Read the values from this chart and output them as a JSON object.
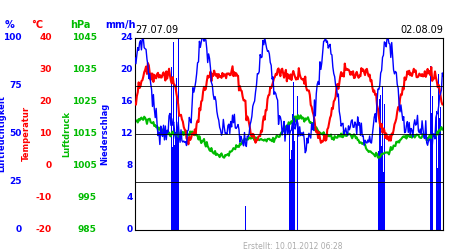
{
  "title_left": "27.07.09",
  "title_right": "02.08.09",
  "footer": "Erstellt: 10.01.2012 06:28",
  "bg_color": "#ffffff",
  "colors": {
    "humidity": "#0000ff",
    "temperature": "#ff0000",
    "pressure": "#00bb00",
    "precipitation": "#0000ff"
  },
  "axis_labels": {
    "humidity": "Luftfeuchtigkeit",
    "temperature": "Temperatur",
    "pressure": "Luftdruck",
    "precipitation": "Niederschlag"
  },
  "units": {
    "humidity": "%",
    "temperature": "°C",
    "pressure": "hPa",
    "precipitation": "mm/h"
  },
  "hum_ticks": [
    0,
    25,
    50,
    75,
    100
  ],
  "temp_ticks": [
    -20,
    -10,
    0,
    10,
    20,
    30,
    40
  ],
  "press_ticks": [
    985,
    995,
    1005,
    1015,
    1025,
    1035,
    1045
  ],
  "precip_ticks": [
    0,
    4,
    8,
    12,
    16,
    20,
    24
  ],
  "hum_min": 0,
  "hum_max": 100,
  "temp_min": -20,
  "temp_max": 40,
  "press_min": 985,
  "press_max": 1045,
  "precip_min": 0,
  "precip_max": 24,
  "n_points": 336,
  "grid_lines": [
    0,
    25,
    50,
    75,
    100
  ]
}
